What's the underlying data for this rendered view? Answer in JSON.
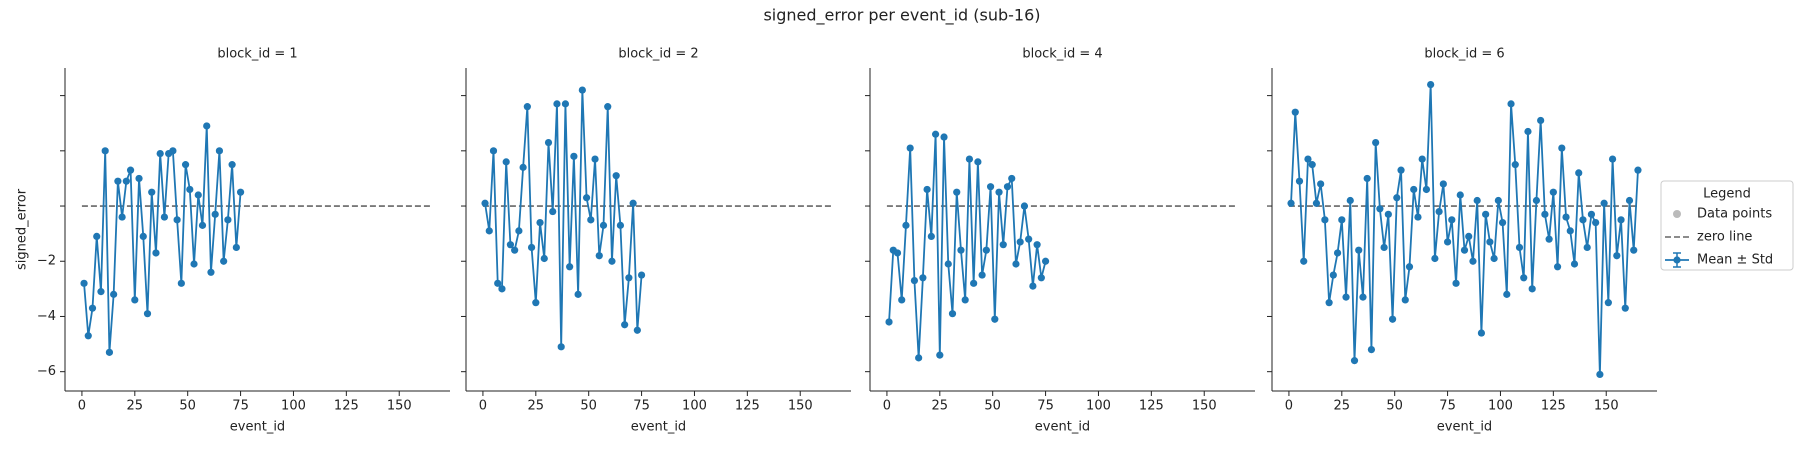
{
  "figure": {
    "title": "signed_error per event_id (sub-16)",
    "legend": {
      "title": "Legend",
      "entries": [
        {
          "name": "Data points",
          "color": "#bbbbbb"
        },
        {
          "name": "zero line",
          "color": "#666666"
        },
        {
          "name": "Mean ± Std",
          "color": "#1f77b4"
        }
      ]
    }
  },
  "chart_data": [
    {
      "type": "line",
      "title": "block_id = 1",
      "xlabel": "event_id",
      "ylabel": "signed_error",
      "x": [
        1,
        3,
        5,
        7,
        9,
        11,
        13,
        15,
        17,
        19,
        21,
        23,
        25,
        27,
        29,
        31,
        33,
        35,
        37,
        39,
        41,
        43,
        45,
        47,
        49,
        51,
        53,
        55,
        57,
        59,
        61,
        63,
        65,
        67,
        69,
        71,
        73,
        75
      ],
      "series": [
        {
          "color": "#1f77b4",
          "values": [
            -2.8,
            -4.7,
            -3.7,
            -1.1,
            -3.1,
            2.0,
            -5.3,
            -3.2,
            0.9,
            -0.4,
            0.9,
            1.3,
            -3.4,
            1.0,
            -1.1,
            -3.9,
            0.5,
            -1.7,
            1.9,
            -0.4,
            1.9,
            2.0,
            -0.5,
            -2.8,
            1.5,
            0.6,
            -2.1,
            0.4,
            -0.7,
            2.9,
            -2.4,
            -0.3,
            2.0,
            -2.0,
            -0.5,
            1.5,
            -1.5,
            0.5
          ]
        }
      ],
      "zero_line": {
        "y": 0,
        "x": [
          0,
          165
        ]
      },
      "xlim": [
        -8,
        174
      ],
      "ylim": [
        -6.7,
        5
      ],
      "xticks": [
        0,
        25,
        50,
        75,
        100,
        125,
        150
      ],
      "yticks": [
        {
          "value": -6,
          "label": "−6"
        },
        {
          "value": -4,
          "label": "−4"
        },
        {
          "value": -2,
          "label": "−2"
        },
        0,
        2,
        4
      ]
    },
    {
      "type": "line",
      "title": "block_id = 2",
      "xlabel": "event_id",
      "x": [
        1,
        3,
        5,
        7,
        9,
        11,
        13,
        15,
        17,
        19,
        21,
        23,
        25,
        27,
        29,
        31,
        33,
        35,
        37,
        39,
        41,
        43,
        45,
        47,
        49,
        51,
        53,
        55,
        57,
        59,
        61,
        63,
        65,
        67,
        69,
        71,
        73,
        75
      ],
      "series": [
        {
          "color": "#1f77b4",
          "values": [
            0.1,
            -0.9,
            2.0,
            -2.8,
            -3.0,
            1.6,
            -1.4,
            -1.6,
            -0.9,
            1.4,
            3.6,
            -1.5,
            -3.5,
            -0.6,
            -1.9,
            2.3,
            -0.2,
            3.7,
            -5.1,
            3.7,
            -2.2,
            1.8,
            -3.2,
            4.2,
            0.3,
            -0.5,
            1.7,
            -1.8,
            -0.7,
            3.6,
            -2.0,
            1.1,
            -0.7,
            -4.3,
            -2.6,
            0.1,
            -4.5,
            -2.5
          ]
        }
      ],
      "zero_line": {
        "y": 0,
        "x": [
          0,
          165
        ]
      },
      "xlim": [
        -8,
        174
      ],
      "ylim": [
        -6.7,
        5
      ],
      "xticks": [
        0,
        25,
        50,
        75,
        100,
        125,
        150
      ],
      "yticks": [
        -6,
        -4,
        -2,
        0,
        2,
        4
      ]
    },
    {
      "type": "line",
      "title": "block_id = 4",
      "xlabel": "event_id",
      "x": [
        1,
        3,
        5,
        7,
        9,
        11,
        13,
        15,
        17,
        19,
        21,
        23,
        25,
        27,
        29,
        31,
        33,
        35,
        37,
        39,
        41,
        43,
        45,
        47,
        49,
        51,
        53,
        55,
        57,
        59,
        61,
        63,
        65,
        67,
        69,
        71,
        73,
        75
      ],
      "series": [
        {
          "color": "#1f77b4",
          "values": [
            -4.2,
            -1.6,
            -1.7,
            -3.4,
            -0.7,
            2.1,
            -2.7,
            -5.5,
            -2.6,
            0.6,
            -1.1,
            2.6,
            -5.4,
            2.5,
            -2.1,
            -3.9,
            0.5,
            -1.6,
            -3.4,
            1.7,
            -2.8,
            1.6,
            -2.5,
            -1.6,
            0.7,
            -4.1,
            0.5,
            -1.4,
            0.7,
            1.0,
            -2.1,
            -1.3,
            0.0,
            -1.2,
            -2.9,
            -1.4,
            -2.6,
            -2.0
          ]
        }
      ],
      "zero_line": {
        "y": 0,
        "x": [
          0,
          165
        ]
      },
      "xlim": [
        -8,
        174
      ],
      "ylim": [
        -6.7,
        5
      ],
      "xticks": [
        0,
        25,
        50,
        75,
        100,
        125,
        150
      ],
      "yticks": [
        -6,
        -4,
        -2,
        0,
        2,
        4
      ]
    },
    {
      "type": "line",
      "title": "block_id = 6",
      "xlabel": "event_id",
      "x": [
        1,
        3,
        5,
        7,
        9,
        11,
        13,
        15,
        17,
        19,
        21,
        23,
        25,
        27,
        29,
        31,
        33,
        35,
        37,
        39,
        41,
        43,
        45,
        47,
        49,
        51,
        53,
        55,
        57,
        59,
        61,
        63,
        65,
        67,
        69,
        71,
        73,
        75,
        77,
        79,
        81,
        83,
        85,
        87,
        89,
        91,
        93,
        95,
        97,
        99,
        101,
        103,
        105,
        107,
        109,
        111,
        113,
        115,
        117,
        119,
        121,
        123,
        125,
        127,
        129,
        131,
        133,
        135,
        137,
        139,
        141,
        143,
        145,
        147,
        149,
        151,
        153,
        155,
        157,
        159,
        161,
        163,
        165
      ],
      "series": [
        {
          "color": "#1f77b4",
          "values": [
            0.1,
            3.4,
            0.9,
            -2.0,
            1.7,
            1.5,
            0.1,
            0.8,
            -0.5,
            -3.5,
            -2.5,
            -1.7,
            -0.5,
            -3.3,
            0.2,
            -5.6,
            -1.6,
            -3.3,
            1.0,
            -5.2,
            2.3,
            -0.1,
            -1.5,
            -0.3,
            -4.1,
            0.3,
            1.3,
            -3.4,
            -2.2,
            0.6,
            -0.4,
            1.7,
            0.6,
            4.4,
            -1.9,
            -0.2,
            0.8,
            -1.3,
            -0.5,
            -2.8,
            0.4,
            -1.6,
            -1.1,
            -2.0,
            0.2,
            -4.6,
            -0.3,
            -1.3,
            -1.9,
            0.2,
            -0.6,
            -3.2,
            3.7,
            1.5,
            -1.5,
            -2.6,
            2.7,
            -3.0,
            0.2,
            3.1,
            -0.3,
            -1.2,
            0.5,
            -2.2,
            2.1,
            -0.4,
            -0.9,
            -2.1,
            1.2,
            -0.5,
            -1.5,
            -0.3,
            -0.6,
            -6.1,
            0.1,
            -3.5,
            1.7,
            -1.8,
            -0.5,
            -3.7,
            0.2,
            -1.6,
            1.3
          ]
        }
      ],
      "zero_line": {
        "y": 0,
        "x": [
          0,
          165
        ]
      },
      "xlim": [
        -8,
        174
      ],
      "ylim": [
        -6.7,
        5
      ],
      "xticks": [
        0,
        25,
        50,
        75,
        100,
        125,
        150
      ],
      "yticks": [
        -6,
        -4,
        -2,
        0,
        2,
        4
      ]
    }
  ]
}
